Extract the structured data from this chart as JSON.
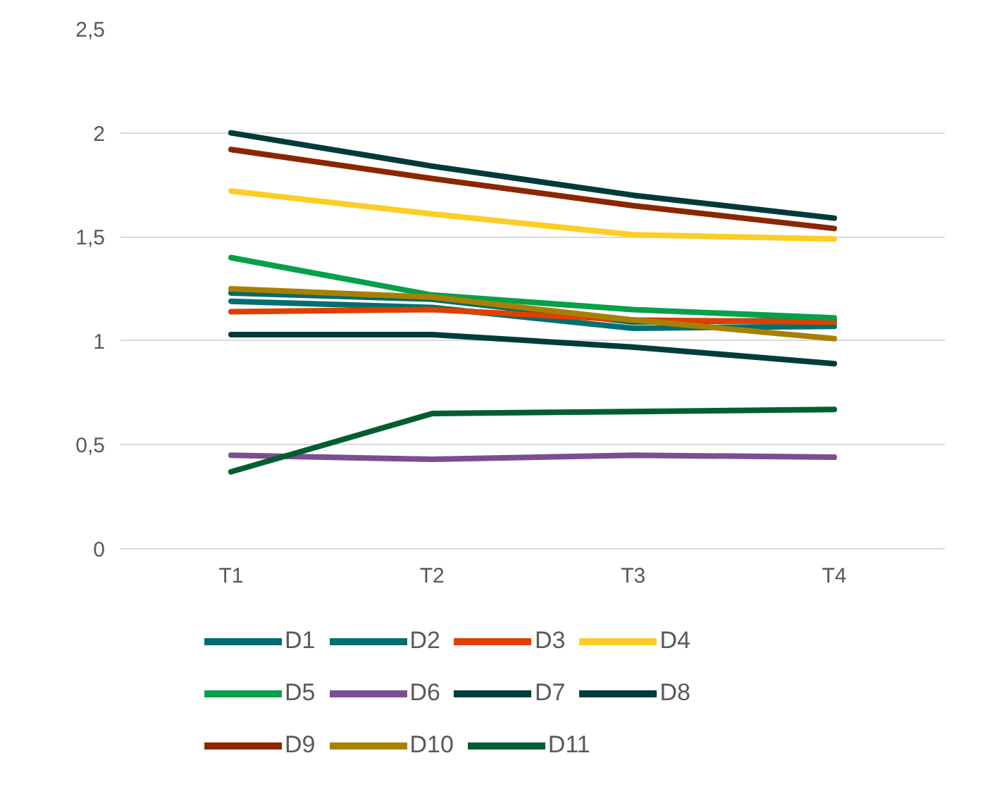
{
  "chart_data": {
    "type": "line",
    "categories": [
      "T1",
      "T2",
      "T3",
      "T4"
    ],
    "ylim": [
      0,
      2.5
    ],
    "yticks": [
      0,
      {
        "value": 0.5,
        "label": "0,5"
      },
      1,
      {
        "value": 1.5,
        "label": "1,5"
      },
      2,
      {
        "value": 2.5,
        "label": "2,5"
      }
    ],
    "grid": "y",
    "legend": "bottom",
    "marker": "none",
    "line_style": "solid",
    "series": [
      {
        "name": "D1",
        "color": "#006b6b",
        "values": [
          1.23,
          1.2,
          1.09,
          1.1
        ]
      },
      {
        "name": "D2",
        "color": "#00706e",
        "values": [
          1.19,
          1.16,
          1.06,
          1.07
        ]
      },
      {
        "name": "D3",
        "color": "#df3f00",
        "values": [
          1.14,
          1.15,
          1.1,
          1.09
        ]
      },
      {
        "name": "D4",
        "color": "#fccd25",
        "values": [
          1.72,
          1.61,
          1.51,
          1.49
        ]
      },
      {
        "name": "D5",
        "color": "#06a04a",
        "values": [
          1.4,
          1.22,
          1.15,
          1.11
        ]
      },
      {
        "name": "D6",
        "color": "#7b4e91",
        "values": [
          0.45,
          0.43,
          0.45,
          0.44
        ]
      },
      {
        "name": "D7",
        "color": "#003c3c",
        "values": [
          1.03,
          1.03,
          0.97,
          0.89
        ]
      },
      {
        "name": "D8",
        "color": "#003a3a",
        "values": [
          2.0,
          1.84,
          1.7,
          1.59
        ]
      },
      {
        "name": "D9",
        "color": "#8a2600",
        "values": [
          1.92,
          1.78,
          1.65,
          1.54
        ]
      },
      {
        "name": "D10",
        "color": "#a88000",
        "values": [
          1.25,
          1.21,
          1.1,
          1.01
        ]
      },
      {
        "name": "D11",
        "color": "#005f2e",
        "values": [
          0.37,
          0.65,
          0.66,
          0.67
        ]
      }
    ]
  }
}
